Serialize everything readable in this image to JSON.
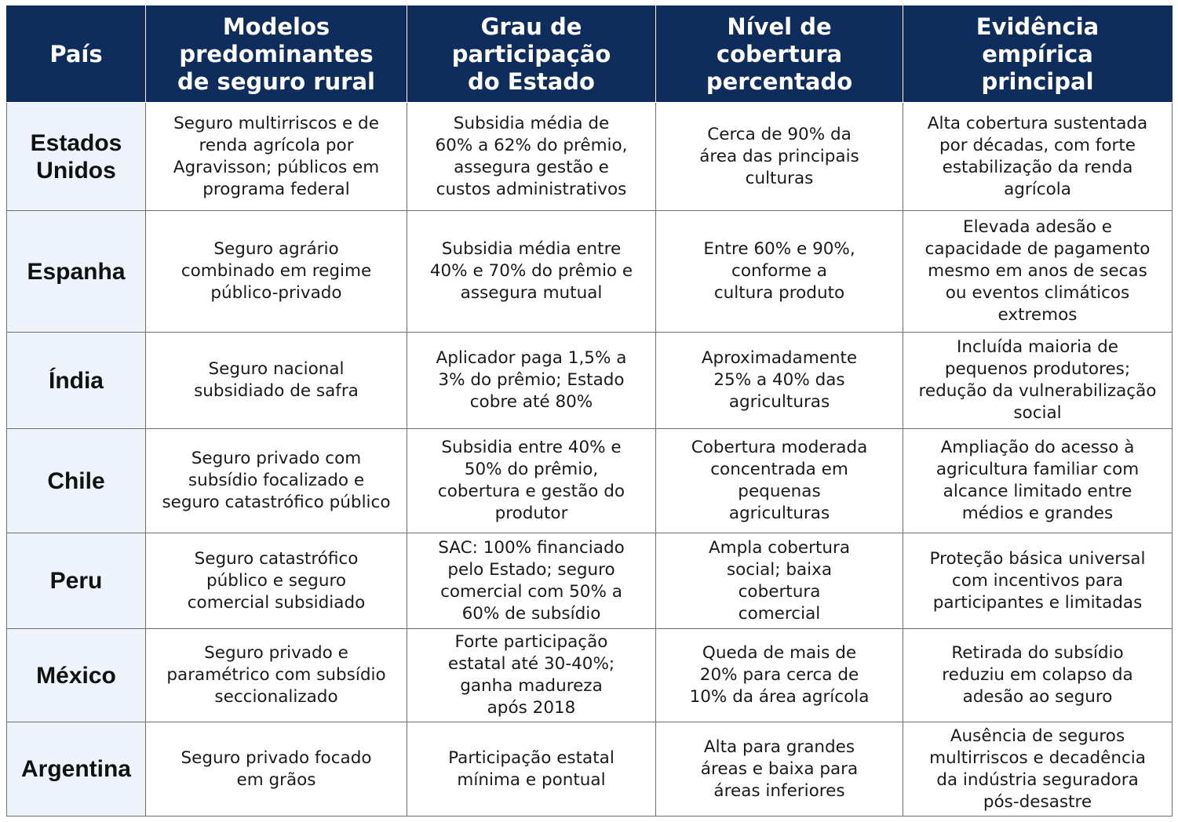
{
  "table": {
    "headers": [
      "País",
      "Modelos\npredominantes\nde seguro rural",
      "Grau de\nparticipação\ndo Estado",
      "Nível de\ncobertura\npercentado",
      "Evidência\nempírica\nprincipal"
    ],
    "rows": [
      {
        "country": "Estados\nUnidos",
        "cells": [
          "Seguro multirriscos e de\nrenda agrícola por\nAgravisson; públicos em\nprograma federal",
          "Subsidia média de\n60% a 62% do prêmio,\nassegura gestão e\ncustos administrativos",
          "Cerca de 90% da\nárea das principais\nculturas",
          "Alta cobertura sustentada\npor décadas, com forte\nestabilização da renda\nagrícola"
        ]
      },
      {
        "country": "Espanha",
        "cells": [
          "Seguro agrário\ncombinado em regime\npúblico-privado",
          "Subsidia média entre\n40% e 70% do prêmio e\nassegura mutual",
          "Entre 60% e 90%,\nconforme a\ncultura produto",
          "Elevada adesão e\ncapacidade de pagamento\nmesmo em anos de secas\nou eventos climáticos\nextremos"
        ]
      },
      {
        "country": "Índia",
        "cells": [
          "Seguro nacional\nsubsidiado de safra",
          "Aplicador paga 1,5% a\n3% do prêmio; Estado\ncobre até 80%",
          "Aproximadamente\n25% a 40% das\nagriculturas",
          "Incluída maioria de\npequenos produtores;\nredução da vulnerabilização\nsocial"
        ]
      },
      {
        "country": "Chile",
        "cells": [
          "Seguro privado com\nsubsídio focalizado e\nseguro catastrófico público",
          "Subsidia entre 40% e\n50% do prêmio,\ncobertura e gestão do\nprodutor",
          "Cobertura moderada\nconcentrada em\npequenas\nagriculturas",
          "Ampliação do acesso à\nagricultura familiar com\nalcance limitado entre\nmédios e grandes"
        ]
      },
      {
        "country": "Peru",
        "cells": [
          "Seguro catastrófico\npúblico e seguro\ncomercial subsidiado",
          "SAC: 100% financiado\npelo Estado; seguro\ncomercial com 50% a\n60% de subsídio",
          "Ampla cobertura\nsocial; baixa\ncobertura\ncomercial",
          "Proteção básica universal\ncom incentivos para\nparticipantes e limitadas"
        ]
      },
      {
        "country": "México",
        "cells": [
          "Seguro privado e\nparamétrico com subsídio\nseccionalizado",
          "Forte participação\nestatal até 30-40%;\nganha madureza\napós 2018",
          "Queda de mais de\n20% para cerca de\n10% da área agrícola",
          "Retirada do subsídio\nreduziu em colapso da\nadesão ao seguro"
        ]
      },
      {
        "country": "Argentina",
        "cells": [
          "Seguro privado focado\nem grãos",
          "Participação estatal\nmínima e pontual",
          "Alta para grandes\náreas e baixa para\náreas inferiores",
          "Ausência de seguros\nmultirriscos e decadência\nda indústria seguradora\npós-desastre"
        ]
      }
    ]
  },
  "colors": {
    "header_bg": "#0f2d5c",
    "header_text": "#ffffff",
    "country_bg": "#edf2fb",
    "border": "#6e6e6e"
  }
}
